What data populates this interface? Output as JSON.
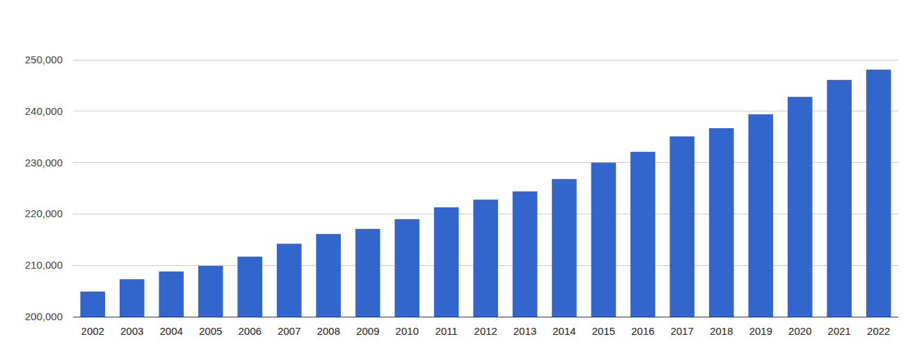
{
  "chart_data": {
    "type": "bar",
    "categories": [
      "2002",
      "2003",
      "2004",
      "2005",
      "2006",
      "2007",
      "2008",
      "2009",
      "2010",
      "2011",
      "2012",
      "2013",
      "2014",
      "2015",
      "2016",
      "2017",
      "2018",
      "2019",
      "2020",
      "2021",
      "2022"
    ],
    "values": [
      204900,
      207300,
      208800,
      209900,
      211700,
      214200,
      216100,
      217100,
      219000,
      221300,
      222800,
      224400,
      226800,
      230000,
      232100,
      235100,
      236700,
      239400,
      242800,
      246100,
      248100
    ],
    "color": "#3366cc",
    "ylim": [
      200000,
      250000
    ],
    "yticks": [
      {
        "value": 200000,
        "label": "200,000"
      },
      {
        "value": 210000,
        "label": "210,000"
      },
      {
        "value": 220000,
        "label": "220,000"
      },
      {
        "value": 230000,
        "label": "230,000"
      },
      {
        "value": 240000,
        "label": "240,000"
      },
      {
        "value": 250000,
        "label": "250,000"
      }
    ],
    "grid": true
  }
}
